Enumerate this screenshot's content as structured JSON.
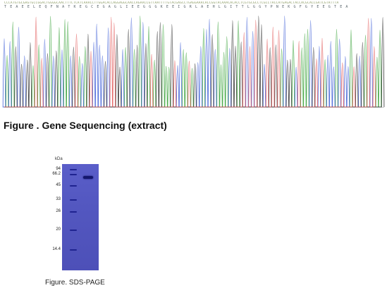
{
  "figure1": {
    "caption": "Figure . Gene Sequencing (extract)",
    "trace_colors": {
      "A": "#2e9e2e",
      "C": "#3a5ad6",
      "G": "#2a2a2a",
      "T": "#e05050"
    }
  },
  "figure2": {
    "caption": "Figure. SDS-PAGE",
    "unit_label": "kDa",
    "markers": [
      "94",
      "66.2",
      "45",
      "33",
      "26",
      "20",
      "14.4"
    ],
    "sample_band_kda": "66.2",
    "gel_color": "#5458c2"
  }
}
